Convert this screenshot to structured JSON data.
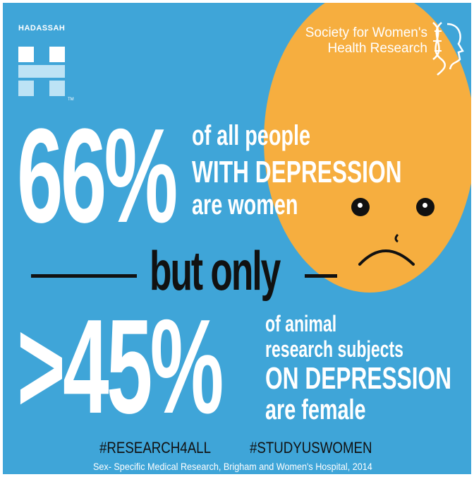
{
  "logos": {
    "hadassah": "HADASSAH",
    "tm": "TM",
    "swhr_line1": "Society for Women's",
    "swhr_line2": "Health Research"
  },
  "stat1": {
    "value": "66%",
    "line1": "of all people",
    "line2": "WITH DEPRESSION",
    "line3": "are women"
  },
  "divider": "but only",
  "stat2": {
    "value": ">45%",
    "line1": "of animal",
    "line2": "research subjects",
    "line3": "ON DEPRESSION",
    "line4": "are female"
  },
  "hashtags": [
    "#RESEARCH4ALL",
    "#STUDYUSWOMEN"
  ],
  "source": "Sex- Specific Medical Research, Brigham and Women's Hospital, 2014",
  "colors": {
    "background": "#3fa5d8",
    "face": "#f6ae3f",
    "text_light": "#ffffff",
    "text_dark": "#111111"
  }
}
